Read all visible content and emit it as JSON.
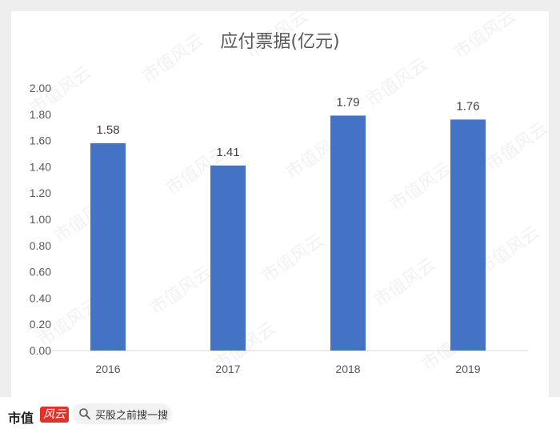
{
  "chart_data": {
    "type": "bar",
    "title": "应付票据(亿元)",
    "categories": [
      "2016",
      "2017",
      "2018",
      "2019"
    ],
    "values": [
      1.58,
      1.41,
      1.79,
      1.76
    ],
    "data_labels": [
      "1.58",
      "1.41",
      "1.79",
      "1.76"
    ],
    "yticks": [
      "0.00",
      "0.20",
      "0.40",
      "0.60",
      "0.80",
      "1.00",
      "1.20",
      "1.40",
      "1.60",
      "1.80",
      "2.00"
    ],
    "ylim": [
      0,
      2.0
    ],
    "grid": false,
    "bar_color": "#4472c4",
    "watermark": "市值风云"
  },
  "footer": {
    "brand": "市值",
    "brand_badge": "风云",
    "search_text": "买股之前搜一搜",
    "accent_color": "#e0312a"
  }
}
